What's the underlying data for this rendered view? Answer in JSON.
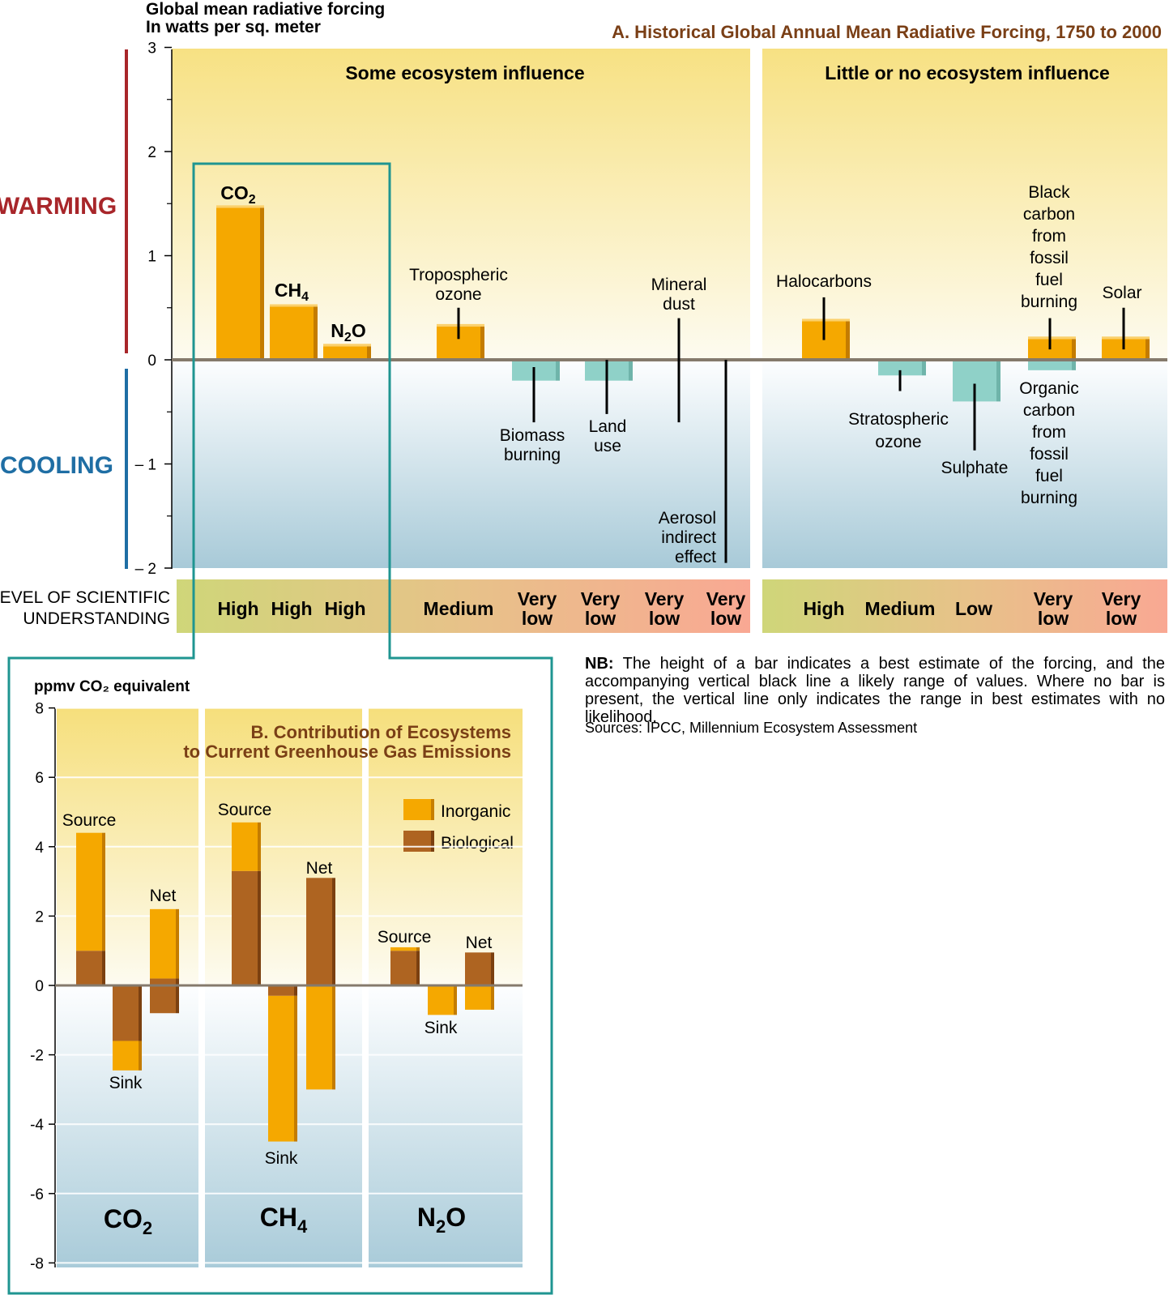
{
  "panelA": {
    "title": "A. Historical Global Annual Mean Radiative Forcing, 1750 to 2000",
    "ylabel_line1": "Global mean radiative forcing",
    "ylabel_line2": "In watts per sq. meter",
    "warming": "WARMING",
    "cooling": "COOLING",
    "group1": "Some ecosystem influence",
    "group2": "Little or no ecosystem influence",
    "level_line1": "LEVEL OF SCIENTIFIC",
    "level_line2": "UNDERSTANDING",
    "yticks": [
      "3",
      "2",
      "1",
      "0",
      "– 1",
      "– 2"
    ]
  },
  "note": {
    "bold": "NB:",
    "text": " The height of a bar indicates a best estimate of the forcing, and the accompanying vertical black line a likely range of values. Where no bar is present, the vertical line only indicates the range in best estimates with no likelihood.",
    "sources": "Sources: IPCC, Millennium Ecosystem Assessment"
  },
  "panelB": {
    "title_line1": "B. Contribution of Ecosystems",
    "title_line2": "to Current Greenhouse Gas Emissions",
    "ylabel": "ppmv CO₂ equivalent",
    "legend": [
      "Inorganic",
      "Biological"
    ],
    "yticks": [
      "8",
      "6",
      "4",
      "2",
      "0",
      "-2",
      "-4",
      "-6",
      "-8"
    ],
    "groups": [
      "CO₂",
      "CH₄",
      "N₂O"
    ]
  },
  "chart_data": [
    {
      "type": "bar",
      "title": "A. Historical Global Annual Mean Radiative Forcing, 1750 to 2000",
      "ylabel": "Global mean radiative forcing In watts per sq. meter",
      "ylim": [
        -2,
        3
      ],
      "colors": {
        "warming_bar": "#f5a800",
        "cooling_bar": "#8fd1c8",
        "range_line": "#000000"
      },
      "bars": [
        {
          "name": "CO₂",
          "value": 1.46,
          "understanding": "High",
          "group": "Some ecosystem influence"
        },
        {
          "name": "CH₄",
          "value": 0.51,
          "understanding": "High",
          "group": "Some ecosystem influence"
        },
        {
          "name": "N₂O",
          "value": 0.13,
          "understanding": "High",
          "group": "Some ecosystem influence"
        },
        {
          "name": "Tropospheric ozone",
          "value": 0.32,
          "range": [
            0.2,
            0.5
          ],
          "understanding": "Medium",
          "group": "Some ecosystem influence"
        },
        {
          "name": "Biomass burning",
          "value": -0.2,
          "range": [
            -0.6,
            -0.07
          ],
          "understanding": "Very low",
          "group": "Some ecosystem influence"
        },
        {
          "name": "Land use",
          "value": -0.2,
          "range": [
            -0.52,
            0.0
          ],
          "understanding": "Very low",
          "group": "Some ecosystem influence"
        },
        {
          "name": "Mineral dust",
          "value": null,
          "range": [
            -0.6,
            0.4
          ],
          "understanding": "Very low",
          "group": "Some ecosystem influence"
        },
        {
          "name": "Aerosol indirect effect",
          "value": null,
          "range": [
            -1.95,
            0.0
          ],
          "understanding": "Very low",
          "group": "Some ecosystem influence"
        },
        {
          "name": "Halocarbons",
          "value": 0.37,
          "range": [
            0.19,
            0.6
          ],
          "understanding": "High",
          "group": "Little or no ecosystem influence"
        },
        {
          "name": "Stratospheric ozone",
          "value": -0.15,
          "range": [
            -0.3,
            -0.1
          ],
          "understanding": "Medium",
          "group": "Little or no ecosystem influence"
        },
        {
          "name": "Sulphate",
          "value": -0.4,
          "range": [
            -0.87,
            -0.23
          ],
          "understanding": "Low",
          "group": "Little or no ecosystem influence"
        },
        {
          "name": "Black carbon from fossil fuel burning",
          "value": 0.2,
          "range": [
            0.1,
            0.4
          ],
          "understanding": "Very low",
          "group": "Little or no ecosystem influence"
        },
        {
          "name": "Organic carbon from fossil fuel burning",
          "value": -0.1,
          "understanding": "Very low",
          "group": "Little or no ecosystem influence"
        },
        {
          "name": "Solar",
          "value": 0.2,
          "range": [
            0.1,
            0.5
          ],
          "understanding": "Very low",
          "group": "Little or no ecosystem influence"
        }
      ]
    },
    {
      "type": "bar",
      "title": "B. Contribution of Ecosystems to Current Greenhouse Gas Emissions",
      "ylabel": "ppmv CO₂ equivalent",
      "ylim": [
        -8,
        8
      ],
      "legend": [
        "Inorganic",
        "Biological"
      ],
      "colors": {
        "Inorganic": "#f5a800",
        "Biological": "#ae6421"
      },
      "groups": [
        {
          "gas": "CO₂",
          "bars": [
            {
              "label": "Source",
              "Biological": 1.0,
              "Inorganic": 3.4,
              "total": 4.4
            },
            {
              "label": "Sink",
              "Biological": -1.6,
              "Inorganic": -0.85,
              "total": -2.45
            },
            {
              "label": "Net",
              "Biological": 0.2,
              "Inorganic": 2.0,
              "negative_total": -0.8,
              "total": 2.2
            }
          ]
        },
        {
          "gas": "CH₄",
          "bars": [
            {
              "label": "Source",
              "Biological": 3.3,
              "Inorganic": 1.4,
              "total": 4.7
            },
            {
              "label": "Sink",
              "Biological": -0.3,
              "Inorganic": -4.2,
              "total": -4.5
            },
            {
              "label": "Net",
              "Biological": 3.1,
              "Inorganic": -3.0,
              "total": 3.1
            }
          ]
        },
        {
          "gas": "N₂O",
          "bars": [
            {
              "label": "Source",
              "Biological": 1.0,
              "Inorganic": 0.1,
              "total": 1.1
            },
            {
              "label": "Sink",
              "Inorganic": -0.85,
              "total": -0.85
            },
            {
              "label": "Net",
              "Biological": 0.95,
              "Inorganic": -0.7,
              "total": 0.95
            }
          ]
        }
      ]
    }
  ]
}
